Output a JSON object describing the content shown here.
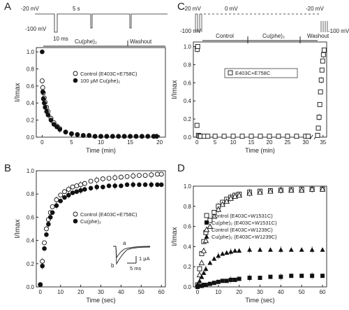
{
  "figure": {
    "panels": [
      {
        "letter": "A",
        "protocol": {
          "v_hold": "-20 mV",
          "v_step": "-100 mV",
          "pulse": "10 ms",
          "interval": "5 s",
          "bars": [
            "Cu(phe)₂",
            "Washout"
          ]
        }
      },
      {
        "letter": "B",
        "inset": {
          "labels": [
            "a",
            "b"
          ],
          "scale_x": "5 ms",
          "scale_y": "1 μA"
        }
      },
      {
        "letter": "C",
        "protocol": {
          "v_hold_left": "-20 mV",
          "v_zero": "0 mV",
          "v_hold_right": "-20 mV",
          "v_step_left": "-100 mV",
          "v_step_right": "-100 mV",
          "bars": [
            "Control",
            "Cu(phe)₂",
            "Washout"
          ]
        }
      },
      {
        "letter": "D"
      }
    ]
  },
  "chart_data": [
    {
      "panel": "A",
      "type": "scatter",
      "xlabel": "Time (min)",
      "ylabel": "I/Imax",
      "xlim": [
        -1,
        21
      ],
      "ylim": [
        0,
        1.05
      ],
      "xticks": [
        0,
        5,
        10,
        15,
        20
      ],
      "yticks": [
        0.0,
        0.2,
        0.4,
        0.6,
        0.8,
        1.0
      ],
      "legend": "center-right",
      "series": [
        {
          "name": "Control (E403C+E758C)",
          "marker": "open-circle",
          "x": [
            0,
            0.1,
            0.2,
            0.35,
            0.5,
            0.75,
            1,
            1.5,
            2,
            2.5,
            3,
            4,
            5,
            6,
            7,
            8,
            9,
            10,
            11,
            12,
            13,
            14,
            15,
            16,
            17,
            18,
            19,
            19.5
          ],
          "values": [
            0.66,
            0.58,
            0.52,
            0.46,
            0.41,
            0.35,
            0.3,
            0.22,
            0.17,
            0.13,
            0.1,
            0.06,
            0.04,
            0.03,
            0.02,
            0.02,
            0.01,
            0.01,
            0.01,
            0.01,
            0.01,
            0.01,
            0.01,
            0.01,
            0.01,
            0.01,
            0.01,
            0.01
          ]
        },
        {
          "name": "100 μM Cu(phe)₂",
          "marker": "filled-circle",
          "x": [
            0,
            0.1,
            0.2,
            0.35,
            0.5,
            0.75,
            1,
            1.5,
            2,
            2.5,
            3,
            4,
            5,
            6,
            7,
            8,
            9,
            10,
            11,
            12,
            13,
            14,
            15,
            16,
            17,
            18,
            19,
            19.5
          ],
          "values": [
            1.0,
            0.53,
            0.45,
            0.4,
            0.35,
            0.3,
            0.26,
            0.2,
            0.15,
            0.12,
            0.09,
            0.06,
            0.04,
            0.03,
            0.02,
            0.02,
            0.01,
            0.01,
            0.01,
            0.01,
            0.01,
            0.01,
            0.01,
            0.01,
            0.01,
            0.01,
            0.01,
            0.01
          ]
        }
      ]
    },
    {
      "panel": "B",
      "type": "scatter",
      "xlabel": "Time (sec)",
      "ylabel": "I/Imax",
      "xlim": [
        -2,
        62
      ],
      "ylim": [
        0,
        1.0
      ],
      "xticks": [
        0,
        10,
        20,
        30,
        40,
        50,
        60
      ],
      "yticks": [
        0.0,
        0.2,
        0.4,
        0.6,
        0.8,
        1.0
      ],
      "legend": "center-right",
      "series": [
        {
          "name": "Control (E403C+E758C)",
          "marker": "open-circle",
          "x": [
            0,
            1,
            2,
            3,
            4,
            5,
            6,
            8,
            10,
            12,
            14,
            16,
            18,
            20,
            22,
            25,
            28,
            31,
            34,
            37,
            40,
            43,
            46,
            49,
            52,
            55,
            58,
            60
          ],
          "values": [
            0.02,
            0.22,
            0.38,
            0.5,
            0.58,
            0.64,
            0.69,
            0.75,
            0.79,
            0.82,
            0.84,
            0.86,
            0.87,
            0.88,
            0.89,
            0.91,
            0.92,
            0.93,
            0.935,
            0.94,
            0.945,
            0.95,
            0.955,
            0.96,
            0.96,
            0.965,
            0.97,
            0.97
          ]
        },
        {
          "name": "Cu(phe)₂",
          "marker": "filled-circle",
          "x": [
            0,
            1,
            2,
            3,
            4,
            5,
            6,
            8,
            10,
            12,
            14,
            16,
            18,
            20,
            22,
            25,
            28,
            31,
            34,
            37,
            40,
            43,
            46,
            49,
            52,
            55,
            58,
            60
          ],
          "values": [
            0.02,
            0.18,
            0.33,
            0.45,
            0.54,
            0.6,
            0.64,
            0.7,
            0.74,
            0.77,
            0.79,
            0.81,
            0.82,
            0.83,
            0.84,
            0.85,
            0.86,
            0.86,
            0.87,
            0.87,
            0.87,
            0.88,
            0.88,
            0.88,
            0.88,
            0.88,
            0.88,
            0.88
          ]
        }
      ]
    },
    {
      "panel": "C",
      "type": "scatter",
      "xlabel": "Time (min)",
      "ylabel": "I/Imax",
      "xlim": [
        -1,
        36
      ],
      "ylim": [
        0,
        1.05
      ],
      "xticks": [
        0,
        5,
        10,
        15,
        20,
        25,
        30,
        35
      ],
      "yticks": [
        0.0,
        0.2,
        0.4,
        0.6,
        0.8,
        1.0
      ],
      "axis_break": [
        31,
        33.5
      ],
      "legend": "center",
      "series": [
        {
          "name": "E403C+E758C",
          "marker": "open-square",
          "x": [
            0,
            0.1,
            0.2,
            0.4,
            0.7,
            1,
            2,
            3,
            5,
            7.5,
            10,
            12.5,
            15,
            17.5,
            20,
            22.5,
            25,
            27.5,
            30,
            30.7,
            33.5,
            33.7,
            33.9,
            34.1,
            34.3,
            34.5,
            34.7,
            34.9,
            35.1,
            35.3
          ],
          "values": [
            0.13,
            0.97,
            1.0,
            0.02,
            0.01,
            0.01,
            0.01,
            0.01,
            0.01,
            0.01,
            0.01,
            0.01,
            0.01,
            0.01,
            0.01,
            0.01,
            0.01,
            0.01,
            0.01,
            0.01,
            0.02,
            0.1,
            0.22,
            0.36,
            0.5,
            0.63,
            0.74,
            0.84,
            0.91,
            0.96
          ]
        }
      ]
    },
    {
      "panel": "D",
      "type": "scatter",
      "xlabel": "Time (sec)",
      "ylabel": "I/Imax",
      "xlim": [
        -2,
        62
      ],
      "ylim": [
        0,
        1.0
      ],
      "xticks": [
        0,
        10,
        20,
        30,
        40,
        50,
        60
      ],
      "yticks": [
        0.0,
        0.2,
        0.4,
        0.6,
        0.8,
        1.0
      ],
      "legend": "center-right",
      "series": [
        {
          "name": "Control (E403C+W1531C)",
          "marker": "open-square",
          "x": [
            0,
            1,
            2,
            3,
            4,
            6,
            8,
            10,
            12,
            14,
            16,
            18,
            20,
            25,
            30,
            35,
            40,
            45,
            50,
            55,
            60
          ],
          "values": [
            0.02,
            0.18,
            0.33,
            0.45,
            0.54,
            0.66,
            0.74,
            0.8,
            0.84,
            0.87,
            0.89,
            0.91,
            0.92,
            0.94,
            0.95,
            0.955,
            0.96,
            0.965,
            0.97,
            0.97,
            0.97
          ]
        },
        {
          "name": "Cu(phe)₂ (E403C+W1531C)",
          "marker": "filled-square",
          "x": [
            0,
            1,
            2,
            3,
            4,
            6,
            8,
            10,
            12,
            14,
            16,
            18,
            20,
            25,
            30,
            35,
            40,
            45,
            50,
            55,
            60
          ],
          "values": [
            0.0,
            0.01,
            0.01,
            0.02,
            0.02,
            0.03,
            0.04,
            0.05,
            0.06,
            0.06,
            0.07,
            0.07,
            0.08,
            0.09,
            0.09,
            0.1,
            0.1,
            0.11,
            0.11,
            0.11,
            0.11
          ]
        },
        {
          "name": "Control (E403C+W1239C)",
          "marker": "open-triangle",
          "x": [
            0,
            1,
            2,
            3,
            4,
            6,
            8,
            10,
            12,
            14,
            16,
            18,
            20,
            25,
            30,
            35,
            40,
            45,
            50,
            55,
            60
          ],
          "values": [
            0.02,
            0.12,
            0.24,
            0.36,
            0.46,
            0.6,
            0.7,
            0.77,
            0.82,
            0.85,
            0.88,
            0.9,
            0.91,
            0.93,
            0.94,
            0.95,
            0.96,
            0.96,
            0.96,
            0.97,
            0.97
          ]
        },
        {
          "name": "Cu(phe)₂ (E403C+W1239C)",
          "marker": "filled-triangle",
          "x": [
            0,
            1,
            2,
            3,
            4,
            6,
            8,
            10,
            12,
            14,
            16,
            18,
            20,
            25,
            30,
            35,
            40,
            45,
            50,
            55,
            60
          ],
          "values": [
            0.02,
            0.06,
            0.1,
            0.14,
            0.18,
            0.24,
            0.28,
            0.31,
            0.33,
            0.34,
            0.35,
            0.36,
            0.36,
            0.37,
            0.37,
            0.37,
            0.37,
            0.37,
            0.37,
            0.37,
            0.37
          ]
        }
      ]
    }
  ]
}
